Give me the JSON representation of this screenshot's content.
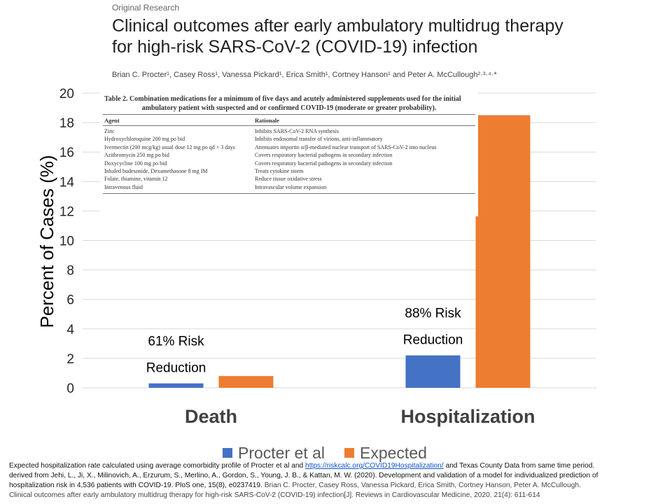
{
  "paper": {
    "label": "Original Research",
    "title_line1": "Clinical outcomes after early ambulatory multidrug therapy",
    "title_line2": "for high-risk SARS-CoV-2 (COVID-19) infection",
    "authors": "Brian C. Procter¹, Casey Ross¹, Vanessa Pickard¹, Erica Smith¹, Cortney Hanson¹ and Peter A. McCullough²·³·⁴·*"
  },
  "table": {
    "caption_line1": "Table 2. Combination medications for a minimum of five days and acutely administered supplements used for the initial",
    "caption_line2": "ambulatory patient with suspected and or confirmed COVID-19 (moderate or greater probability).",
    "headers": [
      "Agent",
      "Rationale"
    ],
    "rows": [
      [
        "Zinc",
        "Inhibits SARS-CoV-2 RNA synthesis"
      ],
      [
        "Hydroxychloroquine 200 mg po bid",
        "Inhibits endosomal transfer of virions, anti-inflammatory"
      ],
      [
        "Ivermectin (200 mcg/kg) usual dose 12 mg po qd × 3 days",
        "Attenuates importin α/β-mediated nuclear transport of SARS-CoV-2 into nucleus"
      ],
      [
        "Azithromycin 250 mg po bid",
        "Covers respiratory bacterial pathogens in secondary infection"
      ],
      [
        "Doxycycline 100 mg po bid",
        "Covers respiratory bacterial pathogens in secondary infection"
      ],
      [
        "Inhaled budesonide, Dexamethasone 8 mg IM",
        "Treats cytokine storm"
      ],
      [
        "Folate, thiamine, vitamin 12",
        "Reduce tissue oxidative stress"
      ],
      [
        "Intravenous fluid",
        "Intravascular volume expansion"
      ]
    ]
  },
  "chart_data": {
    "type": "bar",
    "categories": [
      "Death",
      "Hospitalization"
    ],
    "series": [
      {
        "name": "Procter et al",
        "values": [
          0.3,
          2.2
        ],
        "color": "#4472C4"
      },
      {
        "name": "Expected",
        "values": [
          0.8,
          18.5
        ],
        "color": "#ED7D31"
      }
    ],
    "ylabel": "Percent of Cases (%)",
    "ylim": [
      0,
      20
    ],
    "yticks": [
      0,
      2,
      4,
      6,
      8,
      10,
      12,
      14,
      16,
      18,
      20
    ],
    "grid": true,
    "legend": "bottom",
    "annotations": [
      {
        "category": "Death",
        "line1": "61% Risk",
        "line2": "Reduction"
      },
      {
        "category": "Hospitalization",
        "line1": "88% Risk",
        "line2": "Reduction"
      }
    ]
  },
  "footnote": {
    "part1": "Expected hospitalization rate calculated using average comorbidity profile of Procter et al and ",
    "link": "https://riskcalc.org/COVID19Hospitalization/",
    "part2": " and Texas County Data from same time period.",
    "line2": "derived from Jehi, L., Ji, X., Milinovich, A., Erzurum, S., Merlino, A., Gordon, S., Young, J. B., & Kattan, M. W. (2020). Development and validation of a model for individualized prediction of",
    "line3a": "hospitalization risk in 4,536 patients with COVID-19. PloS one, 15(8), e0237419. ",
    "line3b": "Brian C. Procter, Casey Ross, Vanessa Pickard, Erica Smith, Cortney Hanson, Peter A. McCullough.",
    "line4": "Clinical outcomes after early ambulatory multidrug therapy for high-risk SARS-CoV-2 (COVID-19) infection[J]. Reviews in Cardiovascular Medicine, 2020. 21(4): 611-614"
  }
}
